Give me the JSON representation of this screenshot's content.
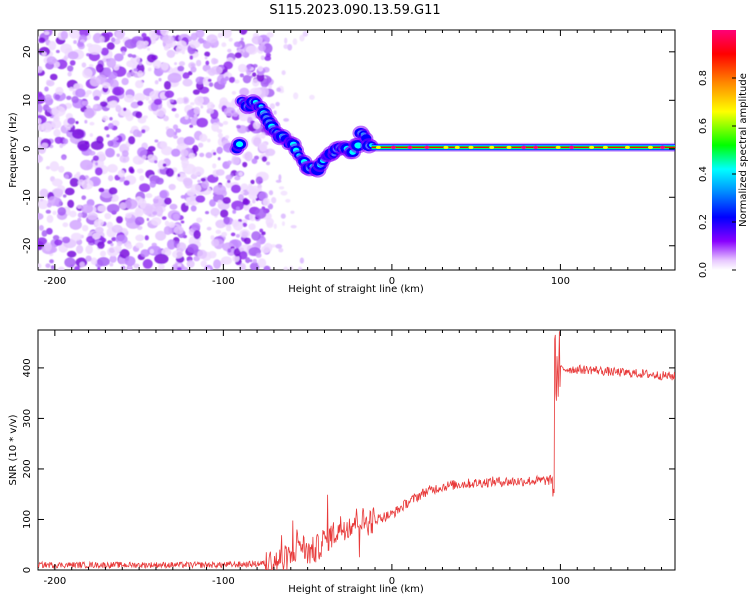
{
  "title": "S115.2023.090.13.59.G11",
  "chart_data": [
    {
      "type": "heatmap",
      "xlabel": "Height of straight line (km)",
      "ylabel": "Frequency (Hz)",
      "xlim": [
        -210,
        168
      ],
      "ylim": [
        -25,
        24.5
      ],
      "xticks": [
        -200,
        -100,
        0,
        100
      ],
      "yticks": [
        -20,
        -10,
        0,
        10,
        20
      ],
      "colorbar": {
        "label": "Normalized spectral amplitude",
        "range": [
          0,
          1
        ],
        "ticks": [
          0.0,
          0.2,
          0.4,
          0.6,
          0.8
        ],
        "colormap": [
          "#ffffff",
          "#8800ff",
          "#0000ff",
          "#00ffff",
          "#00ff00",
          "#ffff00",
          "#ff8800",
          "#ff0000",
          "#ff0077"
        ]
      },
      "features": {
        "noise_region_x": [
          -210,
          -72
        ],
        "signal_track": [
          [
            -90,
            9.5
          ],
          [
            -80,
            9
          ],
          [
            -75,
            7
          ],
          [
            -70,
            4
          ],
          [
            -65,
            2.5
          ],
          [
            -60,
            1
          ],
          [
            -55,
            -1.5
          ],
          [
            -50,
            -4
          ],
          [
            -45,
            -4.5
          ],
          [
            -40,
            -2
          ],
          [
            -35,
            -1
          ],
          [
            -30,
            0.5
          ],
          [
            -25,
            -0.5
          ],
          [
            -20,
            1
          ],
          [
            -18,
            3
          ],
          [
            -15,
            1.5
          ],
          [
            -10,
            0.5
          ],
          [
            0,
            0.3
          ],
          [
            50,
            0.3
          ],
          [
            100,
            0.3
          ],
          [
            168,
            0.3
          ]
        ]
      }
    },
    {
      "type": "line",
      "xlabel": "Height of straight line (km)",
      "ylabel": "SNR (10 * v/v)",
      "xlim": [
        -210,
        168
      ],
      "ylim": [
        0,
        475
      ],
      "xticks": [
        -200,
        -100,
        0,
        100
      ],
      "yticks": [
        0,
        100,
        200,
        300,
        400
      ],
      "series": [
        {
          "color": "#e83a3a",
          "x": [
            -210,
            -150,
            -100,
            -80,
            -70,
            -60,
            -55,
            -50,
            -45,
            -40,
            -35,
            -30,
            -25,
            -20,
            -15,
            -10,
            -5,
            0,
            10,
            20,
            30,
            40,
            50,
            60,
            70,
            80,
            90,
            96,
            97,
            98,
            100,
            110,
            120,
            130,
            140,
            150,
            160,
            168
          ],
          "y": [
            10,
            10,
            10,
            12,
            15,
            25,
            55,
            35,
            40,
            60,
            70,
            85,
            90,
            100,
            95,
            100,
            105,
            110,
            135,
            155,
            165,
            170,
            172,
            175,
            175,
            176,
            177,
            178,
            400,
            395,
            398,
            397,
            396,
            392,
            390,
            388,
            385,
            383
          ]
        }
      ]
    }
  ]
}
